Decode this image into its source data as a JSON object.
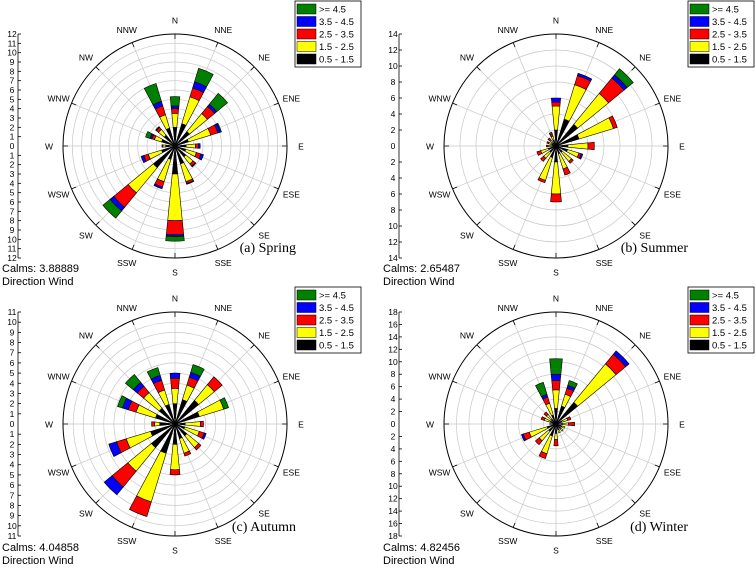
{
  "directions": [
    "N",
    "NNE",
    "NE",
    "ENE",
    "E",
    "ESE",
    "SE",
    "SSE",
    "S",
    "SSW",
    "SW",
    "WSW",
    "W",
    "WNW",
    "NW",
    "NNW"
  ],
  "legend": {
    "labels": [
      ">= 4.5",
      "3.5 - 4.5",
      "2.5 - 3.5",
      "1.5 - 2.5",
      "0.5 - 1.5"
    ],
    "colors": [
      "#008000",
      "#0000ff",
      "#ff0000",
      "#ffff00",
      "#000000"
    ]
  },
  "chart_data": [
    {
      "type": "wind_rose",
      "caption": "(a) Spring",
      "calms": "Calms: 3.88889",
      "footer": "Direction Wind",
      "rmax": 12,
      "tick_labels": [
        "1",
        "2",
        "3",
        "4",
        "5",
        "6",
        "7",
        "8",
        "9",
        "10",
        "11",
        "12"
      ],
      "series": [
        {
          "name": "0.5 - 1.5",
          "values": [
            2.0,
            2.5,
            2.0,
            1.5,
            1.2,
            1.2,
            1.5,
            2.0,
            3.0,
            1.5,
            3.0,
            1.5,
            1.0,
            1.5,
            1.5,
            2.0
          ]
        },
        {
          "name": "1.5 - 2.5",
          "values": [
            1.5,
            3.0,
            2.5,
            2.5,
            1.0,
            1.2,
            1.0,
            2.0,
            5.0,
            2.5,
            3.5,
            1.5,
            0.3,
            0.8,
            0.8,
            1.5
          ]
        },
        {
          "name": "2.5 - 3.5",
          "values": [
            0.5,
            1.0,
            1.0,
            0.8,
            0.3,
            0.5,
            0.3,
            0.2,
            1.5,
            0.6,
            2.0,
            0.5,
            0.1,
            0.3,
            0.3,
            1.0
          ]
        },
        {
          "name": "3.5 - 4.5",
          "values": [
            0.3,
            0.7,
            0.3,
            0.3,
            0.2,
            0.3,
            0.1,
            0.1,
            0.2,
            0.2,
            0.5,
            0.3,
            0.0,
            0.2,
            0.1,
            0.5
          ]
        },
        {
          "name": ">= 4.5",
          "values": [
            1.0,
            1.5,
            1.5,
            0.1,
            0.0,
            0.0,
            0.0,
            0.0,
            0.5,
            0.0,
            1.0,
            0.0,
            0.0,
            0.5,
            0.0,
            2.0
          ]
        }
      ]
    },
    {
      "type": "wind_rose",
      "caption": "(b) Summer",
      "calms": "Calms: 2.65487",
      "footer": "Direction Wind",
      "rmax": 14,
      "tick_labels": [
        "2",
        "4",
        "6",
        "8",
        "10",
        "12",
        "14"
      ],
      "series": [
        {
          "name": "0.5 - 1.5",
          "values": [
            2.0,
            3.5,
            3.5,
            3.0,
            1.5,
            1.5,
            1.0,
            1.0,
            2.0,
            1.5,
            1.0,
            1.0,
            0.5,
            0.5,
            0.5,
            0.8
          ]
        },
        {
          "name": "1.5 - 2.5",
          "values": [
            3.0,
            4.5,
            5.0,
            4.5,
            2.5,
            1.5,
            1.5,
            2.0,
            4.0,
            3.0,
            1.0,
            1.0,
            0.5,
            0.5,
            0.5,
            0.5
          ]
        },
        {
          "name": "2.5 - 3.5",
          "values": [
            0.5,
            1.2,
            2.5,
            0.5,
            0.8,
            0.3,
            0.3,
            0.8,
            1.0,
            0.3,
            0.5,
            0.5,
            0.2,
            0.2,
            0.3,
            0.3
          ]
        },
        {
          "name": "3.5 - 4.5",
          "values": [
            0.5,
            0.3,
            0.5,
            0.0,
            0.0,
            0.2,
            0.0,
            0.0,
            0.0,
            0.0,
            0.0,
            0.0,
            0.0,
            0.0,
            0.0,
            0.0
          ]
        },
        {
          "name": ">= 4.5",
          "values": [
            0.0,
            0.0,
            1.0,
            0.0,
            0.0,
            0.0,
            0.0,
            0.0,
            0.0,
            0.0,
            0.0,
            0.0,
            0.0,
            0.0,
            0.0,
            0.2
          ]
        }
      ]
    },
    {
      "type": "wind_rose",
      "caption": "(c) Autumn",
      "calms": "Calms: 4.04858",
      "footer": "Direction Wind",
      "rmax": 11,
      "tick_labels": [
        "1",
        "2",
        "3",
        "4",
        "5",
        "6",
        "7",
        "8",
        "9",
        "10",
        "11"
      ],
      "series": [
        {
          "name": "0.5 - 1.5",
          "values": [
            2.0,
            2.5,
            3.0,
            2.5,
            1.0,
            1.0,
            1.5,
            1.5,
            2.0,
            3.0,
            3.0,
            2.5,
            1.5,
            2.0,
            2.0,
            2.0
          ]
        },
        {
          "name": "1.5 - 2.5",
          "values": [
            1.5,
            1.5,
            2.0,
            2.5,
            1.5,
            1.5,
            1.5,
            1.5,
            2.5,
            5.0,
            3.0,
            2.5,
            0.5,
            2.0,
            2.0,
            1.5
          ]
        },
        {
          "name": "2.5 - 3.5",
          "values": [
            1.0,
            0.8,
            1.0,
            0.0,
            0.3,
            0.5,
            0.3,
            0.3,
            0.5,
            1.5,
            2.0,
            1.0,
            0.3,
            0.8,
            0.8,
            1.0
          ]
        },
        {
          "name": "3.5 - 4.5",
          "values": [
            0.5,
            0.5,
            0.0,
            0.0,
            0.0,
            0.2,
            0.0,
            0.0,
            0.0,
            0.0,
            1.0,
            0.8,
            0.0,
            0.6,
            0.5,
            0.5
          ]
        },
        {
          "name": ">= 4.5",
          "values": [
            0.0,
            0.8,
            0.0,
            0.5,
            0.0,
            0.0,
            0.0,
            0.0,
            0.0,
            0.0,
            0.0,
            0.0,
            0.0,
            0.5,
            1.0,
            0.8
          ]
        }
      ]
    },
    {
      "type": "wind_rose",
      "caption": "(d) Winter",
      "calms": "Calms: 4.82456",
      "footer": "Direction Wind",
      "rmax": 18,
      "tick_labels": [
        "2",
        "4",
        "6",
        "8",
        "10",
        "12",
        "14",
        "16",
        "18"
      ],
      "series": [
        {
          "name": "0.5 - 1.5",
          "values": [
            2.5,
            3.0,
            4.5,
            1.0,
            1.0,
            1.0,
            1.0,
            1.0,
            1.5,
            2.0,
            1.5,
            1.5,
            0.5,
            1.0,
            1.0,
            1.5
          ]
        },
        {
          "name": "1.5 - 2.5",
          "values": [
            3.0,
            2.0,
            8.0,
            1.0,
            1.0,
            0.5,
            0.5,
            0.5,
            1.0,
            3.0,
            2.0,
            3.0,
            0.5,
            1.0,
            1.0,
            2.0
          ]
        },
        {
          "name": "2.5 - 3.5",
          "values": [
            1.5,
            1.0,
            2.0,
            0.5,
            1.0,
            0.0,
            0.0,
            0.0,
            1.0,
            0.8,
            0.8,
            1.0,
            0.0,
            0.5,
            0.5,
            1.0
          ]
        },
        {
          "name": "3.5 - 4.5",
          "values": [
            1.0,
            0.5,
            0.7,
            0.0,
            0.0,
            0.0,
            0.0,
            0.0,
            0.0,
            0.0,
            0.0,
            0.3,
            0.0,
            0.0,
            0.0,
            0.5
          ]
        },
        {
          "name": ">= 4.5",
          "values": [
            2.5,
            0.8,
            0.0,
            0.0,
            0.0,
            0.0,
            0.0,
            0.0,
            0.0,
            0.0,
            0.0,
            0.0,
            0.0,
            0.0,
            0.0,
            2.0
          ]
        }
      ]
    }
  ]
}
